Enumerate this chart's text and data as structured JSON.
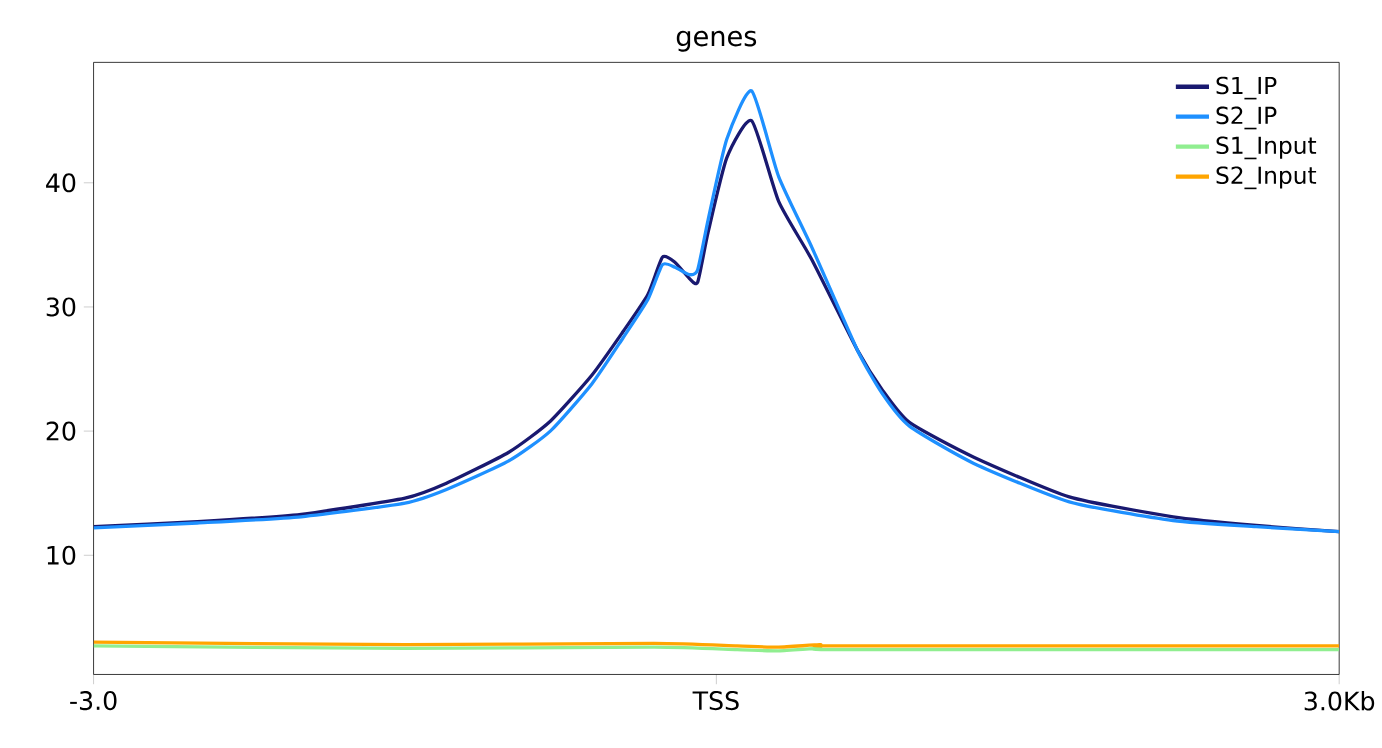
{
  "chart_data": {
    "type": "line",
    "title": "genes",
    "xlim": [
      -3,
      3
    ],
    "ylim": [
      0.4,
      49.7
    ],
    "xticks": [
      {
        "value": -3,
        "label": "-3.0"
      },
      {
        "value": 0,
        "label": "TSS"
      },
      {
        "value": 3,
        "label": "3.0Kb"
      }
    ],
    "yticks": [
      10,
      20,
      30,
      40
    ],
    "legend": "top right",
    "grid": false,
    "marker": "none",
    "line_style": "solid",
    "series": [
      {
        "name": "S1_IP",
        "color": "#191970",
        "x": [
          -3,
          -2.5,
          -2,
          -1.5,
          -1.3,
          -1,
          -0.8,
          -0.6,
          -0.45,
          -0.33,
          -0.26,
          -0.2,
          -0.13,
          -0.09,
          -0.04,
          0.05,
          0.17,
          0.3,
          0.46,
          0.68,
          0.8,
          0.93,
          1.24,
          1.7,
          2.2,
          2.6,
          3
        ],
        "values": [
          12.3,
          12.7,
          13.3,
          14.6,
          15.8,
          18.3,
          20.8,
          24.5,
          28,
          31,
          34,
          33.6,
          32.3,
          32,
          36,
          42,
          45,
          38.5,
          33.8,
          26.5,
          23.3,
          20.7,
          17.9,
          14.7,
          13.1,
          12.4,
          11.9
        ]
      },
      {
        "name": "S2_IP",
        "color": "#1e90ff",
        "x": [
          -3,
          -2.5,
          -2,
          -1.5,
          -1.3,
          -1,
          -0.8,
          -0.6,
          -0.45,
          -0.33,
          -0.26,
          -0.2,
          -0.13,
          -0.09,
          -0.04,
          0.05,
          0.17,
          0.3,
          0.46,
          0.68,
          0.8,
          0.93,
          1.24,
          1.7,
          2.2,
          2.6,
          3
        ],
        "values": [
          12.2,
          12.6,
          13.1,
          14.2,
          15.3,
          17.6,
          20,
          23.8,
          27.5,
          30.6,
          33.4,
          33.2,
          32.6,
          33,
          37,
          43.5,
          47.4,
          40.5,
          34.8,
          26.5,
          23,
          20.4,
          17.4,
          14.3,
          12.8,
          12.3,
          11.9
        ]
      },
      {
        "name": "S1_Input",
        "color": "#90ee90",
        "x": [
          -3,
          -1.5,
          -0.3,
          0.1,
          0.3,
          0.5,
          0.6,
          3
        ],
        "values": [
          2.7,
          2.5,
          2.6,
          2.4,
          2.3,
          2.5,
          2.4,
          2.4
        ]
      },
      {
        "name": "S2_Input",
        "color": "#ffa500",
        "x": [
          -3,
          -1.5,
          -0.3,
          0.1,
          0.3,
          0.5,
          0.6,
          3
        ],
        "values": [
          3,
          2.8,
          2.9,
          2.7,
          2.6,
          2.8,
          2.7,
          2.7
        ]
      }
    ]
  }
}
